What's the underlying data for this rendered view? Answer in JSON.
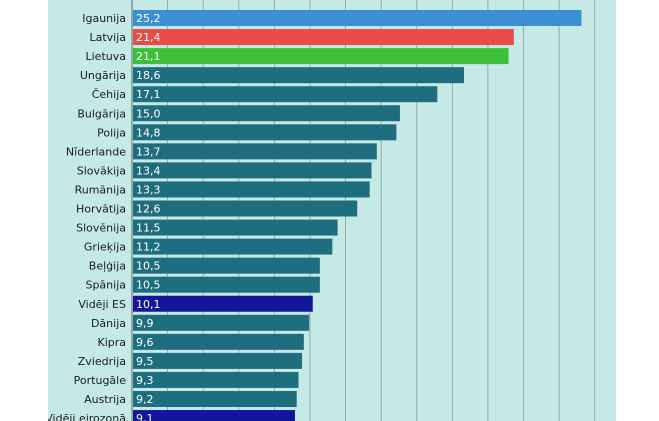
{
  "chart_data": {
    "type": "bar",
    "orientation": "horizontal",
    "categories": [
      "Igaunija",
      "Latvija",
      "Lietuva",
      "Ungārija",
      "Čehija",
      "Bulgārija",
      "Polija",
      "Nīderlande",
      "Slovākija",
      "Rumānija",
      "Horvātija",
      "Slovēnija",
      "Grieķija",
      "Beļģija",
      "Spānija",
      "Vidēji ES",
      "Dānija",
      "Kipra",
      "Zviedrija",
      "Portugāle",
      "Austrija",
      "Vidēji eirozonā"
    ],
    "values": [
      25.2,
      21.4,
      21.1,
      18.6,
      17.1,
      15.0,
      14.8,
      13.7,
      13.4,
      13.3,
      12.6,
      11.5,
      11.2,
      10.5,
      10.5,
      10.1,
      9.9,
      9.6,
      9.5,
      9.3,
      9.2,
      9.1
    ],
    "value_labels": [
      "25,2",
      "21,4",
      "21,1",
      "18,6",
      "17,1",
      "15,0",
      "14,8",
      "13,7",
      "13,4",
      "13,3",
      "12,6",
      "11,5",
      "11,2",
      "10,5",
      "10,5",
      "10,1",
      "9,9",
      "9,6",
      "9,5",
      "9,3",
      "9,2",
      "9,1"
    ],
    "bar_colors": [
      "#3d8fd4",
      "#e94c48",
      "#3ebf3b",
      "#1f6e80",
      "#1f6e80",
      "#1f6e80",
      "#1f6e80",
      "#1f6e80",
      "#1f6e80",
      "#1f6e80",
      "#1f6e80",
      "#1f6e80",
      "#1f6e80",
      "#1f6e80",
      "#1f6e80",
      "#13169b",
      "#1f6e80",
      "#1f6e80",
      "#1f6e80",
      "#1f6e80",
      "#1f6e80",
      "#13169b"
    ],
    "background_color": "#c5e9e6",
    "gridline_color": "#8f9a99",
    "xlim": [
      0,
      26
    ],
    "grid": true,
    "title": "",
    "xlabel": "",
    "ylabel": ""
  }
}
